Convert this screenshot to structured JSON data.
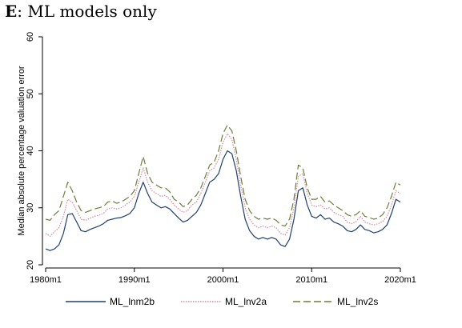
{
  "header": {
    "panel_letter": "E",
    "panel_rest": ": ML models only"
  },
  "chart_data": {
    "type": "line",
    "title": "E: ML models only",
    "xlabel": "",
    "ylabel": "Median absolute percentage valuation error",
    "xlim": [
      1980.0,
      2020.0
    ],
    "ylim": [
      20,
      60
    ],
    "yticks": [
      20,
      30,
      40,
      50,
      60
    ],
    "xticks": [
      {
        "value": 1980,
        "label": "1980m1"
      },
      {
        "value": 1990,
        "label": "1990m1"
      },
      {
        "value": 2000,
        "label": "2000m1"
      },
      {
        "value": 2010,
        "label": "2010m1"
      },
      {
        "value": 2020,
        "label": "2020m1"
      }
    ],
    "grid": false,
    "legend_position": "bottom",
    "series": [
      {
        "name": "ML_lnm2b",
        "color": "#1f3f6e",
        "style": "solid",
        "points": [
          [
            1980.0,
            22.8
          ],
          [
            1980.5,
            22.5
          ],
          [
            1981.0,
            22.8
          ],
          [
            1981.5,
            23.5
          ],
          [
            1982.0,
            25.5
          ],
          [
            1982.5,
            28.8
          ],
          [
            1983.0,
            29.0
          ],
          [
            1983.5,
            27.5
          ],
          [
            1984.0,
            26.0
          ],
          [
            1984.5,
            25.8
          ],
          [
            1985.0,
            26.2
          ],
          [
            1985.5,
            26.5
          ],
          [
            1986.0,
            26.8
          ],
          [
            1986.5,
            27.2
          ],
          [
            1987.0,
            27.8
          ],
          [
            1987.5,
            28.0
          ],
          [
            1988.0,
            28.2
          ],
          [
            1988.5,
            28.3
          ],
          [
            1989.0,
            28.6
          ],
          [
            1989.5,
            29.0
          ],
          [
            1990.0,
            30.0
          ],
          [
            1990.5,
            32.5
          ],
          [
            1991.0,
            34.5
          ],
          [
            1991.5,
            32.5
          ],
          [
            1992.0,
            31.0
          ],
          [
            1992.5,
            30.5
          ],
          [
            1993.0,
            30.0
          ],
          [
            1993.5,
            30.2
          ],
          [
            1994.0,
            29.8
          ],
          [
            1994.5,
            29.0
          ],
          [
            1995.0,
            28.2
          ],
          [
            1995.5,
            27.5
          ],
          [
            1996.0,
            27.8
          ],
          [
            1996.5,
            28.5
          ],
          [
            1997.0,
            29.2
          ],
          [
            1997.5,
            30.5
          ],
          [
            1998.0,
            32.5
          ],
          [
            1998.5,
            34.5
          ],
          [
            1999.0,
            35.0
          ],
          [
            1999.5,
            36.0
          ],
          [
            2000.0,
            38.5
          ],
          [
            2000.5,
            40.0
          ],
          [
            2001.0,
            39.5
          ],
          [
            2001.5,
            36.5
          ],
          [
            2002.0,
            32.0
          ],
          [
            2002.5,
            28.0
          ],
          [
            2003.0,
            26.0
          ],
          [
            2003.5,
            25.0
          ],
          [
            2004.0,
            24.5
          ],
          [
            2004.5,
            24.8
          ],
          [
            2005.0,
            24.5
          ],
          [
            2005.5,
            24.8
          ],
          [
            2006.0,
            24.5
          ],
          [
            2006.5,
            23.5
          ],
          [
            2007.0,
            23.2
          ],
          [
            2007.5,
            24.5
          ],
          [
            2008.0,
            28.0
          ],
          [
            2008.5,
            33.0
          ],
          [
            2009.0,
            33.5
          ],
          [
            2009.5,
            30.5
          ],
          [
            2010.0,
            28.5
          ],
          [
            2010.5,
            28.2
          ],
          [
            2011.0,
            28.8
          ],
          [
            2011.5,
            28.0
          ],
          [
            2012.0,
            28.2
          ],
          [
            2012.5,
            27.5
          ],
          [
            2013.0,
            27.2
          ],
          [
            2013.5,
            26.8
          ],
          [
            2014.0,
            26.0
          ],
          [
            2014.5,
            25.8
          ],
          [
            2015.0,
            26.2
          ],
          [
            2015.5,
            27.0
          ],
          [
            2016.0,
            26.2
          ],
          [
            2016.5,
            26.0
          ],
          [
            2017.0,
            25.6
          ],
          [
            2017.5,
            25.8
          ],
          [
            2018.0,
            26.2
          ],
          [
            2018.5,
            27.0
          ],
          [
            2019.0,
            29.0
          ],
          [
            2019.5,
            31.5
          ],
          [
            2020.0,
            31.0
          ]
        ]
      },
      {
        "name": "ML_lnv2a",
        "color": "#d28aa0",
        "style": "dotted",
        "points": [
          [
            1980.0,
            25.5
          ],
          [
            1980.5,
            25.0
          ],
          [
            1981.0,
            25.8
          ],
          [
            1981.5,
            26.5
          ],
          [
            1982.0,
            28.5
          ],
          [
            1982.5,
            31.5
          ],
          [
            1983.0,
            31.0
          ],
          [
            1983.5,
            29.5
          ],
          [
            1984.0,
            28.0
          ],
          [
            1984.5,
            27.8
          ],
          [
            1985.0,
            28.2
          ],
          [
            1985.5,
            28.5
          ],
          [
            1986.0,
            28.7
          ],
          [
            1986.5,
            29.0
          ],
          [
            1987.0,
            29.8
          ],
          [
            1987.5,
            30.0
          ],
          [
            1988.0,
            29.8
          ],
          [
            1988.5,
            30.0
          ],
          [
            1989.0,
            30.5
          ],
          [
            1989.5,
            31.0
          ],
          [
            1990.0,
            32.0
          ],
          [
            1990.5,
            34.5
          ],
          [
            1991.0,
            37.0
          ],
          [
            1991.5,
            34.5
          ],
          [
            1992.0,
            33.0
          ],
          [
            1992.5,
            32.5
          ],
          [
            1993.0,
            32.0
          ],
          [
            1993.5,
            32.2
          ],
          [
            1994.0,
            31.5
          ],
          [
            1994.5,
            30.5
          ],
          [
            1995.0,
            29.8
          ],
          [
            1995.5,
            29.2
          ],
          [
            1996.0,
            29.5
          ],
          [
            1996.5,
            30.5
          ],
          [
            1997.0,
            31.0
          ],
          [
            1997.5,
            32.5
          ],
          [
            1998.0,
            34.5
          ],
          [
            1998.5,
            36.5
          ],
          [
            1999.0,
            37.0
          ],
          [
            1999.5,
            38.5
          ],
          [
            2000.0,
            41.5
          ],
          [
            2000.5,
            43.0
          ],
          [
            2001.0,
            42.0
          ],
          [
            2001.5,
            38.5
          ],
          [
            2002.0,
            34.0
          ],
          [
            2002.5,
            30.0
          ],
          [
            2003.0,
            28.0
          ],
          [
            2003.5,
            27.0
          ],
          [
            2004.0,
            26.5
          ],
          [
            2004.5,
            26.8
          ],
          [
            2005.0,
            26.5
          ],
          [
            2005.5,
            26.8
          ],
          [
            2006.0,
            26.5
          ],
          [
            2006.5,
            25.5
          ],
          [
            2007.0,
            25.2
          ],
          [
            2007.5,
            26.5
          ],
          [
            2008.0,
            30.0
          ],
          [
            2008.5,
            35.5
          ],
          [
            2009.0,
            36.0
          ],
          [
            2009.5,
            32.5
          ],
          [
            2010.0,
            30.5
          ],
          [
            2010.5,
            30.2
          ],
          [
            2011.0,
            30.5
          ],
          [
            2011.5,
            29.8
          ],
          [
            2012.0,
            30.0
          ],
          [
            2012.5,
            29.2
          ],
          [
            2013.0,
            28.8
          ],
          [
            2013.5,
            28.5
          ],
          [
            2014.0,
            27.5
          ],
          [
            2014.5,
            27.2
          ],
          [
            2015.0,
            27.6
          ],
          [
            2015.5,
            28.5
          ],
          [
            2016.0,
            27.5
          ],
          [
            2016.5,
            27.2
          ],
          [
            2017.0,
            27.0
          ],
          [
            2017.5,
            27.2
          ],
          [
            2018.0,
            27.6
          ],
          [
            2018.5,
            28.5
          ],
          [
            2019.0,
            30.5
          ],
          [
            2019.5,
            33.0
          ],
          [
            2020.0,
            32.5
          ]
        ]
      },
      {
        "name": "ML_lnv2s",
        "color": "#6b7d3a",
        "style": "dashed",
        "points": [
          [
            1980.0,
            28.0
          ],
          [
            1980.5,
            27.8
          ],
          [
            1981.0,
            28.8
          ],
          [
            1981.5,
            29.5
          ],
          [
            1982.0,
            32.0
          ],
          [
            1982.5,
            34.5
          ],
          [
            1983.0,
            33.0
          ],
          [
            1983.5,
            31.0
          ],
          [
            1984.0,
            29.5
          ],
          [
            1984.5,
            29.2
          ],
          [
            1985.0,
            29.5
          ],
          [
            1985.5,
            29.8
          ],
          [
            1986.0,
            30.0
          ],
          [
            1986.5,
            30.2
          ],
          [
            1987.0,
            31.0
          ],
          [
            1987.5,
            31.2
          ],
          [
            1988.0,
            30.8
          ],
          [
            1988.5,
            31.0
          ],
          [
            1989.0,
            31.5
          ],
          [
            1989.5,
            32.0
          ],
          [
            1990.0,
            33.0
          ],
          [
            1990.5,
            36.0
          ],
          [
            1991.0,
            39.0
          ],
          [
            1991.5,
            36.0
          ],
          [
            1992.0,
            34.5
          ],
          [
            1992.5,
            34.0
          ],
          [
            1993.0,
            33.5
          ],
          [
            1993.5,
            33.5
          ],
          [
            1994.0,
            32.8
          ],
          [
            1994.5,
            31.5
          ],
          [
            1995.0,
            31.0
          ],
          [
            1995.5,
            30.2
          ],
          [
            1996.0,
            30.5
          ],
          [
            1996.5,
            31.5
          ],
          [
            1997.0,
            32.2
          ],
          [
            1997.5,
            33.5
          ],
          [
            1998.0,
            35.5
          ],
          [
            1998.5,
            37.5
          ],
          [
            1999.0,
            38.0
          ],
          [
            1999.5,
            40.0
          ],
          [
            2000.0,
            43.0
          ],
          [
            2000.5,
            44.5
          ],
          [
            2001.0,
            43.5
          ],
          [
            2001.5,
            40.0
          ],
          [
            2002.0,
            35.5
          ],
          [
            2002.5,
            31.5
          ],
          [
            2003.0,
            29.5
          ],
          [
            2003.5,
            28.5
          ],
          [
            2004.0,
            28.0
          ],
          [
            2004.5,
            28.2
          ],
          [
            2005.0,
            28.0
          ],
          [
            2005.5,
            28.2
          ],
          [
            2006.0,
            27.8
          ],
          [
            2006.5,
            27.0
          ],
          [
            2007.0,
            26.8
          ],
          [
            2007.5,
            28.0
          ],
          [
            2008.0,
            31.5
          ],
          [
            2008.5,
            37.5
          ],
          [
            2009.0,
            37.0
          ],
          [
            2009.5,
            33.5
          ],
          [
            2010.0,
            31.5
          ],
          [
            2010.5,
            31.5
          ],
          [
            2011.0,
            32.0
          ],
          [
            2011.5,
            31.0
          ],
          [
            2012.0,
            31.2
          ],
          [
            2012.5,
            30.5
          ],
          [
            2013.0,
            30.0
          ],
          [
            2013.5,
            29.5
          ],
          [
            2014.0,
            28.8
          ],
          [
            2014.5,
            28.5
          ],
          [
            2015.0,
            28.8
          ],
          [
            2015.5,
            29.5
          ],
          [
            2016.0,
            28.5
          ],
          [
            2016.5,
            28.3
          ],
          [
            2017.0,
            28.0
          ],
          [
            2017.5,
            28.2
          ],
          [
            2018.0,
            28.8
          ],
          [
            2018.5,
            30.0
          ],
          [
            2019.0,
            32.0
          ],
          [
            2019.5,
            34.5
          ],
          [
            2020.0,
            34.0
          ]
        ]
      }
    ]
  }
}
